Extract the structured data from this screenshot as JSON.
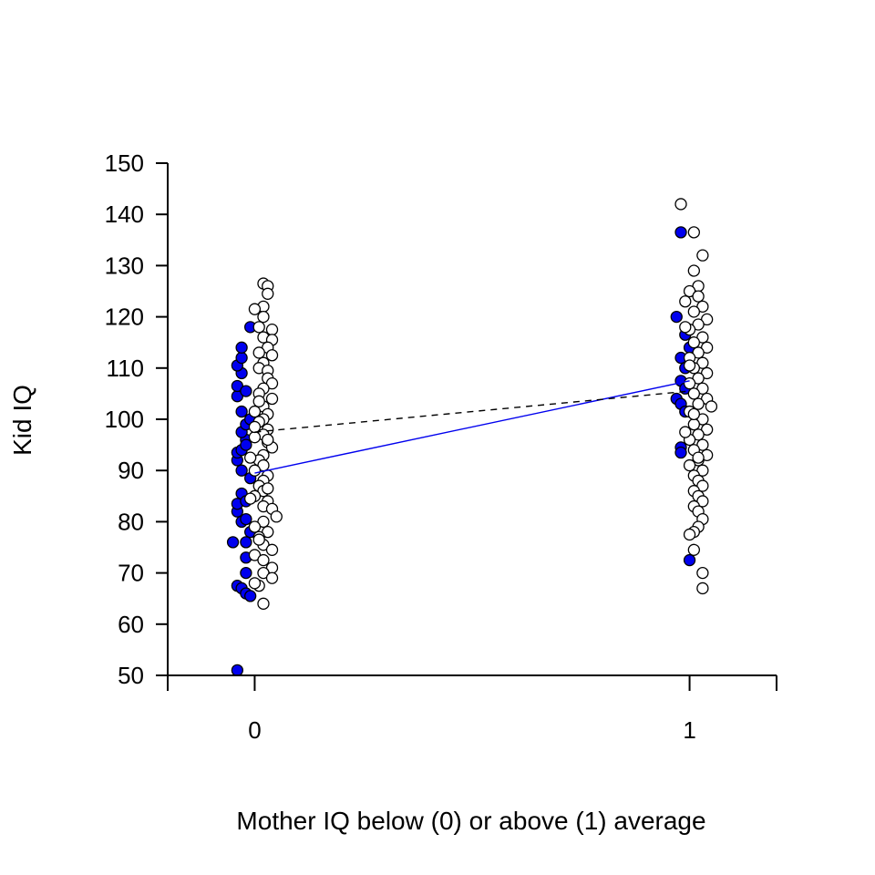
{
  "chart_data": {
    "type": "scatter",
    "title": "",
    "xlabel": "Mother IQ below (0) or above (1) average",
    "ylabel": "Kid IQ",
    "xlim": [
      -0.2,
      1.2
    ],
    "ylim": [
      50,
      150
    ],
    "x_ticks": [
      0,
      1
    ],
    "y_ticks": [
      50,
      60,
      70,
      80,
      90,
      100,
      110,
      120,
      130,
      140,
      150
    ],
    "colors": {
      "group_blue": "#0000ee",
      "group_white": "#ffffff",
      "outline": "#000000",
      "line_blue": "#0000ee",
      "line_black": "#000000"
    },
    "series": [
      {
        "name": "blue",
        "points": [
          [
            -0.04,
            51.0
          ],
          [
            -0.05,
            76.0
          ],
          [
            -0.02,
            76.0
          ],
          [
            -0.03,
            80.0
          ],
          [
            -0.04,
            82.0
          ],
          [
            -0.04,
            83.5
          ],
          [
            -0.03,
            85.5
          ],
          [
            -0.02,
            84.0
          ],
          [
            -0.02,
            80.5
          ],
          [
            -0.01,
            78.0
          ],
          [
            -0.04,
            67.5
          ],
          [
            -0.03,
            67.0
          ],
          [
            -0.02,
            66.0
          ],
          [
            -0.01,
            65.5
          ],
          [
            -0.02,
            70.0
          ],
          [
            -0.02,
            73.0
          ],
          [
            -0.03,
            90.0
          ],
          [
            -0.04,
            92.0
          ],
          [
            -0.04,
            93.5
          ],
          [
            -0.03,
            94.0
          ],
          [
            -0.02,
            96.0
          ],
          [
            -0.03,
            97.5
          ],
          [
            -0.02,
            99.0
          ],
          [
            -0.01,
            100.0
          ],
          [
            -0.03,
            101.5
          ],
          [
            -0.04,
            104.5
          ],
          [
            -0.04,
            106.5
          ],
          [
            -0.02,
            105.5
          ],
          [
            -0.03,
            109.0
          ],
          [
            -0.04,
            110.5
          ],
          [
            -0.03,
            112.0
          ],
          [
            -0.03,
            114.0
          ],
          [
            -0.01,
            118.0
          ],
          [
            -0.01,
            88.5
          ],
          [
            -0.02,
            95.0
          ],
          [
            0.98,
            136.5
          ],
          [
            0.97,
            120.0
          ],
          [
            0.99,
            116.5
          ],
          [
            0.98,
            112.0
          ],
          [
            0.99,
            110.0
          ],
          [
            0.98,
            107.5
          ],
          [
            0.97,
            104.0
          ],
          [
            0.98,
            103.0
          ],
          [
            0.99,
            101.5
          ],
          [
            0.98,
            94.5
          ],
          [
            0.98,
            93.5
          ],
          [
            1.0,
            72.5
          ],
          [
            1.0,
            114.0
          ],
          [
            0.99,
            106.0
          ]
        ]
      },
      {
        "name": "white",
        "points": [
          [
            0.02,
            126.5
          ],
          [
            0.03,
            126.0
          ],
          [
            0.03,
            124.5
          ],
          [
            0.02,
            122.0
          ],
          [
            0.02,
            120.0
          ],
          [
            0.01,
            118.0
          ],
          [
            0.04,
            117.5
          ],
          [
            0.02,
            116.0
          ],
          [
            0.04,
            115.5
          ],
          [
            0.03,
            114.0
          ],
          [
            0.04,
            112.5
          ],
          [
            0.02,
            111.0
          ],
          [
            0.01,
            110.0
          ],
          [
            0.03,
            109.5
          ],
          [
            0.03,
            108.0
          ],
          [
            0.04,
            107.0
          ],
          [
            0.02,
            106.0
          ],
          [
            0.01,
            105.0
          ],
          [
            0.04,
            104.0
          ],
          [
            0.02,
            102.5
          ],
          [
            0.0,
            101.5
          ],
          [
            0.03,
            101.0
          ],
          [
            0.02,
            100.0
          ],
          [
            0.01,
            99.5
          ],
          [
            0.03,
            98.0
          ],
          [
            0.02,
            97.0
          ],
          [
            0.0,
            96.5
          ],
          [
            0.03,
            95.5
          ],
          [
            0.04,
            94.5
          ],
          [
            0.02,
            93.0
          ],
          [
            0.01,
            92.0
          ],
          [
            0.02,
            91.0
          ],
          [
            0.0,
            90.0
          ],
          [
            0.03,
            89.0
          ],
          [
            0.02,
            88.0
          ],
          [
            0.01,
            87.0
          ],
          [
            0.02,
            86.0
          ],
          [
            0.0,
            85.0
          ],
          [
            0.03,
            84.0
          ],
          [
            0.02,
            83.0
          ],
          [
            0.04,
            82.5
          ],
          [
            0.05,
            81.0
          ],
          [
            0.02,
            80.0
          ],
          [
            0.0,
            79.0
          ],
          [
            0.03,
            78.0
          ],
          [
            0.01,
            77.0
          ],
          [
            0.02,
            75.5
          ],
          [
            0.04,
            74.5
          ],
          [
            0.0,
            73.5
          ],
          [
            0.02,
            72.5
          ],
          [
            0.04,
            71.0
          ],
          [
            0.02,
            70.0
          ],
          [
            0.04,
            69.0
          ],
          [
            0.01,
            67.5
          ],
          [
            0.02,
            64.0
          ],
          [
            0.0,
            68.0
          ],
          [
            0.01,
            76.5
          ],
          [
            0.03,
            86.5
          ],
          [
            0.01,
            103.5
          ],
          [
            0.03,
            96.0
          ],
          [
            -0.01,
            92.5
          ],
          [
            0.0,
            98.5
          ],
          [
            -0.01,
            84.5
          ],
          [
            0.01,
            113.0
          ],
          [
            0.0,
            121.5
          ],
          [
            0.98,
            142.0
          ],
          [
            1.01,
            136.5
          ],
          [
            1.03,
            132.0
          ],
          [
            1.01,
            129.0
          ],
          [
            1.02,
            126.0
          ],
          [
            1.0,
            125.0
          ],
          [
            1.02,
            124.0
          ],
          [
            0.99,
            123.0
          ],
          [
            1.03,
            122.0
          ],
          [
            1.01,
            121.0
          ],
          [
            1.04,
            119.5
          ],
          [
            1.02,
            118.5
          ],
          [
            1.0,
            117.5
          ],
          [
            1.03,
            116.0
          ],
          [
            1.01,
            115.0
          ],
          [
            1.04,
            114.0
          ],
          [
            1.02,
            113.0
          ],
          [
            1.0,
            112.0
          ],
          [
            1.03,
            111.0
          ],
          [
            1.01,
            110.0
          ],
          [
            1.04,
            109.0
          ],
          [
            1.02,
            108.0
          ],
          [
            1.0,
            107.0
          ],
          [
            1.03,
            106.0
          ],
          [
            1.01,
            105.0
          ],
          [
            1.04,
            104.0
          ],
          [
            1.02,
            103.0
          ],
          [
            1.05,
            102.5
          ],
          [
            1.0,
            101.5
          ],
          [
            1.03,
            100.0
          ],
          [
            1.01,
            99.0
          ],
          [
            1.04,
            98.0
          ],
          [
            1.02,
            97.0
          ],
          [
            1.0,
            96.0
          ],
          [
            1.03,
            95.0
          ],
          [
            1.01,
            94.0
          ],
          [
            1.04,
            93.0
          ],
          [
            1.02,
            92.0
          ],
          [
            1.0,
            91.0
          ],
          [
            1.03,
            90.0
          ],
          [
            1.01,
            89.0
          ],
          [
            1.02,
            88.0
          ],
          [
            1.03,
            87.0
          ],
          [
            1.01,
            86.0
          ],
          [
            1.02,
            85.0
          ],
          [
            1.03,
            84.0
          ],
          [
            1.01,
            83.0
          ],
          [
            1.02,
            82.0
          ],
          [
            1.03,
            80.5
          ],
          [
            1.02,
            79.0
          ],
          [
            1.01,
            78.0
          ],
          [
            1.0,
            77.5
          ],
          [
            1.01,
            74.5
          ],
          [
            1.03,
            70.0
          ],
          [
            1.03,
            67.0
          ],
          [
            0.99,
            118.0
          ],
          [
            1.0,
            110.5
          ],
          [
            1.01,
            101.0
          ],
          [
            0.99,
            97.5
          ],
          [
            1.02,
            92.5
          ]
        ]
      }
    ],
    "lines": [
      {
        "name": "blue-fit",
        "style": "solid",
        "from": [
          0.0,
          89.5
        ],
        "to": [
          1.0,
          107.5
        ]
      },
      {
        "name": "black-fit",
        "style": "dashed",
        "from": [
          0.0,
          97.5
        ],
        "to": [
          1.0,
          105.5
        ]
      }
    ]
  }
}
